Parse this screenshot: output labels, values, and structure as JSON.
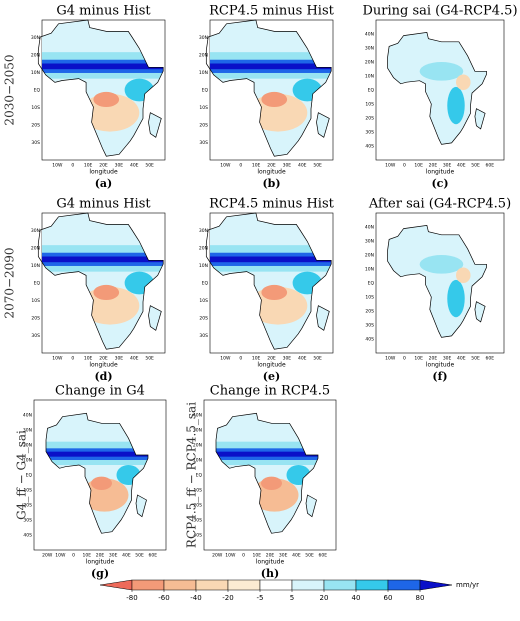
{
  "row_labels": [
    "2030−2050",
    "2070−2090",
    "G4_ff − G4_sai",
    "RCP4.5_ff − RCP4.5_sai"
  ],
  "panels": [
    {
      "title": "G4 minus Hist",
      "label": "(a)",
      "xlabel": "longitude",
      "xticks": [
        "10W",
        "0",
        "10E",
        "20E",
        "30E",
        "40E",
        "50E"
      ],
      "yticks": [
        "30N",
        "20N",
        "10N",
        "EQ",
        "10S",
        "20S",
        "30S"
      ]
    },
    {
      "title": "RCP4.5 minus Hist",
      "label": "(b)",
      "xlabel": "longitude",
      "xticks": [
        "10W",
        "0",
        "10E",
        "20E",
        "30E",
        "40E",
        "50E"
      ],
      "yticks": [
        "30N",
        "20N",
        "10N",
        "EQ",
        "10S",
        "20S",
        "30S"
      ]
    },
    {
      "title": "During sai (G4-RCP4.5)",
      "label": "(c)",
      "xlabel": "longitude",
      "xticks": [
        "10W",
        "0",
        "10E",
        "20E",
        "30E",
        "40E",
        "50E",
        "60E"
      ],
      "yticks": [
        "40N",
        "30N",
        "20N",
        "10N",
        "EQ",
        "10S",
        "20S",
        "30S",
        "40S"
      ]
    },
    {
      "title": "G4 minus Hist",
      "label": "(d)",
      "xlabel": "longitude",
      "xticks": [
        "10W",
        "0",
        "10E",
        "20E",
        "30E",
        "40E",
        "50E"
      ],
      "yticks": [
        "30N",
        "20N",
        "10N",
        "EQ",
        "10S",
        "20S",
        "30S"
      ]
    },
    {
      "title": "RCP4.5 minus Hist",
      "label": "(e)",
      "xlabel": "longitude",
      "xticks": [
        "10W",
        "0",
        "10E",
        "20E",
        "30E",
        "40E",
        "50E"
      ],
      "yticks": [
        "30N",
        "20N",
        "10N",
        "EQ",
        "10S",
        "20S",
        "30S"
      ]
    },
    {
      "title": "After sai (G4-RCP4.5)",
      "label": "(f)",
      "xlabel": "longitude",
      "xticks": [
        "10W",
        "0",
        "10E",
        "20E",
        "30E",
        "40E",
        "50E",
        "60E"
      ],
      "yticks": [
        "40N",
        "30N",
        "20N",
        "10N",
        "EQ",
        "10S",
        "20S",
        "30S",
        "40S"
      ]
    },
    {
      "title": "Change in G4",
      "label": "(g)",
      "xlabel": "longitude",
      "xticks": [
        "20W",
        "10W",
        "0",
        "10E",
        "20E",
        "30E",
        "40E",
        "50E",
        "60E"
      ],
      "yticks": [
        "40N",
        "30N",
        "20N",
        "10N",
        "EQ",
        "10S",
        "20S",
        "30S",
        "40S"
      ]
    },
    {
      "title": "Change in RCP4.5",
      "label": "(h)",
      "xlabel": "longitude",
      "xticks": [
        "20W",
        "10W",
        "0",
        "10E",
        "20E",
        "30E",
        "40E",
        "50E",
        "60E"
      ],
      "yticks": [
        "40N",
        "30N",
        "20N",
        "10N",
        "EQ",
        "10S",
        "20S",
        "30S",
        "40S"
      ]
    }
  ],
  "colorbar": {
    "ticks": [
      -80,
      -60,
      -40,
      -20,
      -5,
      5,
      20,
      40,
      60,
      80
    ],
    "unit": "mm/yr",
    "colors": [
      "#ee6a5a",
      "#f39a78",
      "#f6bc94",
      "#f9d8b4",
      "#fcebd2",
      "#ffffff",
      "#d8f4fb",
      "#98e4f2",
      "#35c9ea",
      "#1e66e8",
      "#0a10c8"
    ]
  }
}
